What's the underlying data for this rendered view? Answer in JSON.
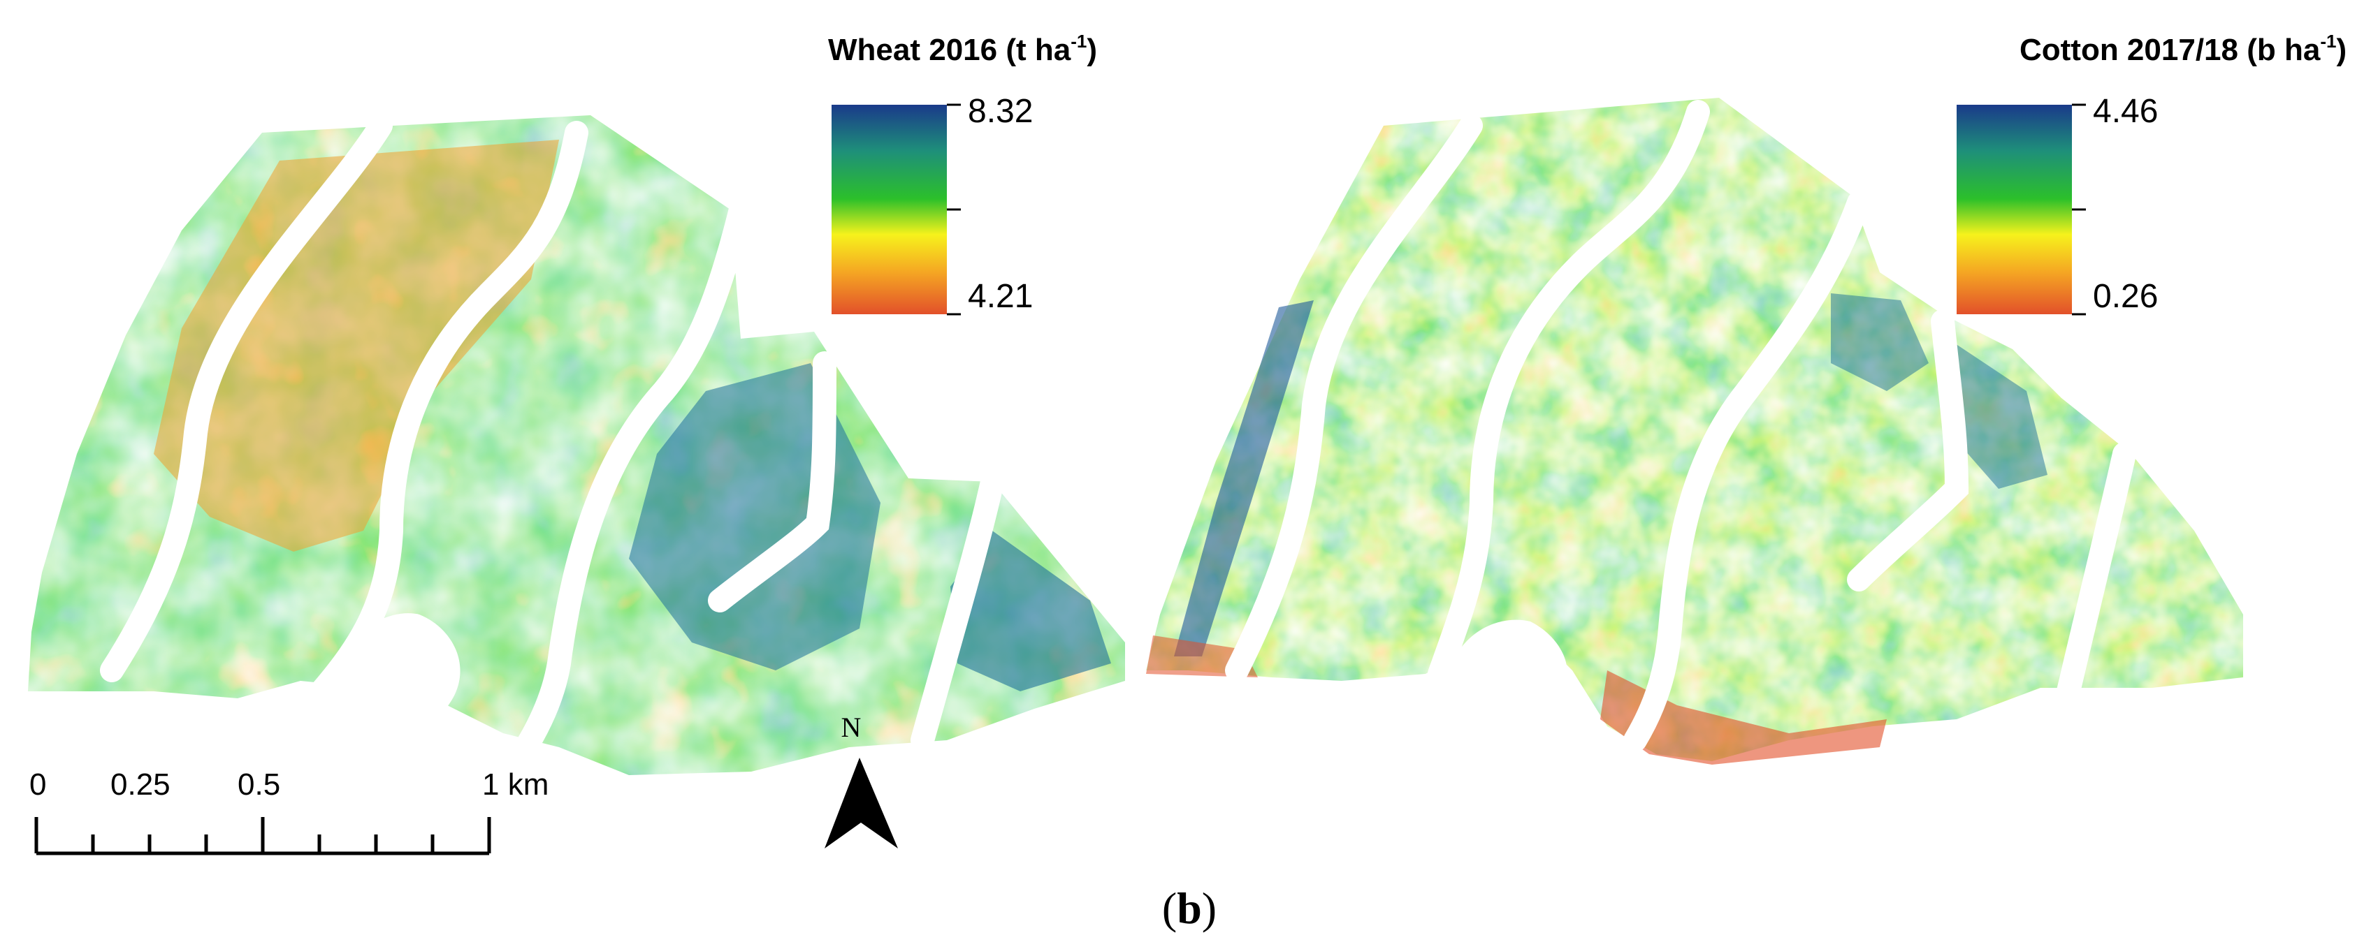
{
  "maps": [
    {
      "legend_title": "Wheat 2016 (t ha",
      "legend_unit_exp": "-1",
      "legend_close": ")",
      "legend_max": "8.32",
      "legend_min": "4.21"
    },
    {
      "legend_title": "Cotton 2017/18 (b ha",
      "legend_unit_exp": "-1",
      "legend_close": ")",
      "legend_max": "4.46",
      "legend_min": "0.26"
    }
  ],
  "colors": {
    "high": "#1f3f8f",
    "mid_high": "#1e9c6a",
    "mid": "#2fc42a",
    "mid_low": "#f4f01e",
    "low": "#e05a2a",
    "field_gap": "#ffffff"
  },
  "scale_bar": {
    "labels": [
      "0",
      "0.25",
      "0.5",
      "1 km"
    ]
  },
  "north_arrow": {
    "label": "N"
  },
  "caption": {
    "open": "(",
    "letter": "b",
    "close": ")"
  }
}
